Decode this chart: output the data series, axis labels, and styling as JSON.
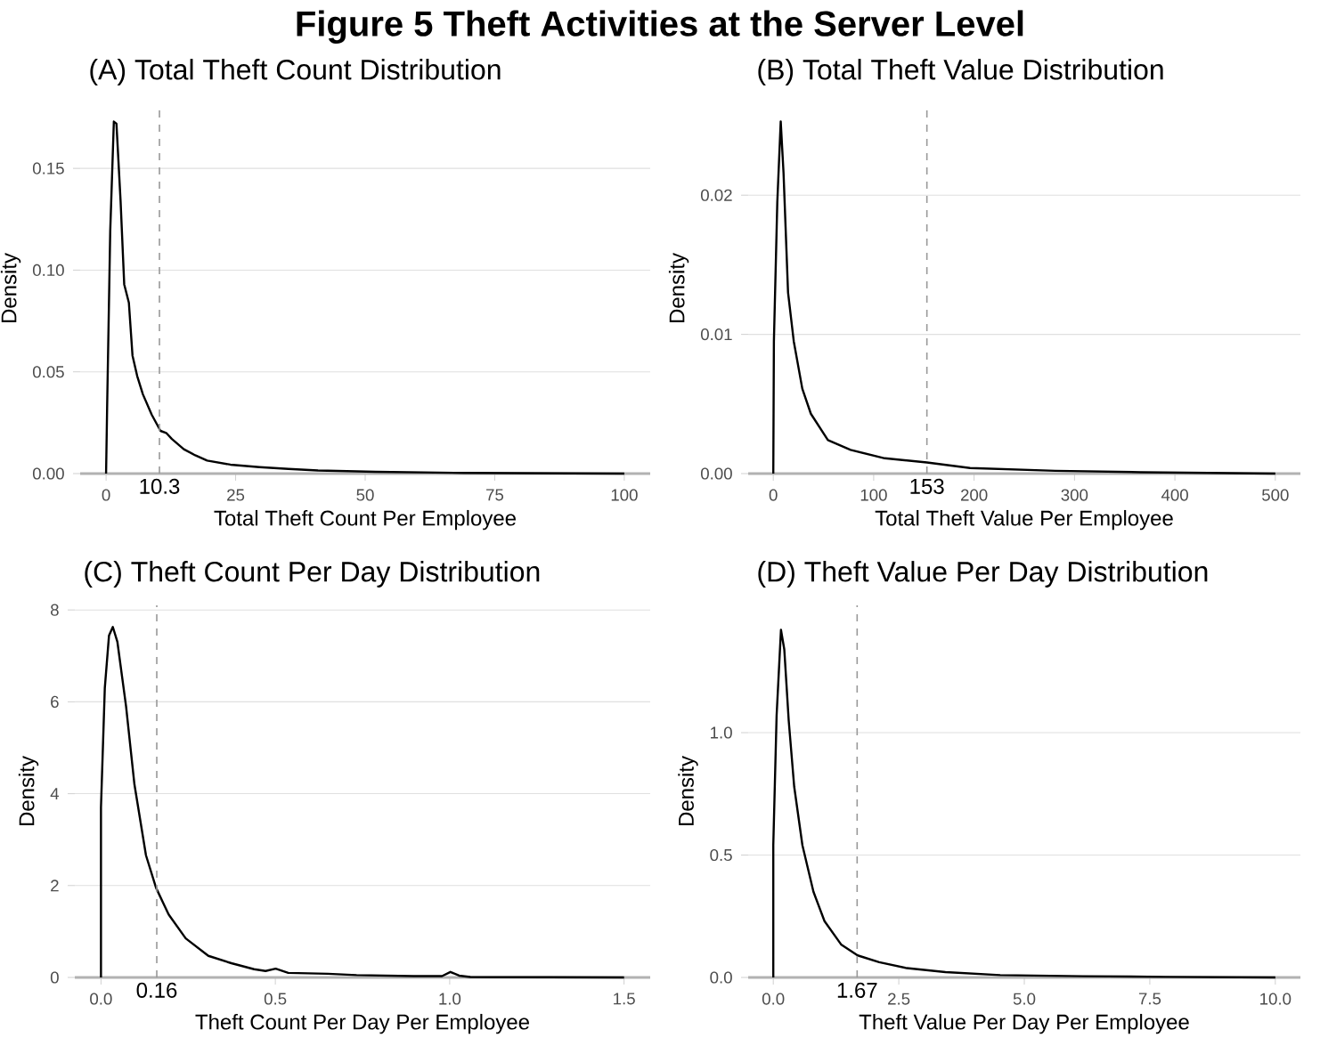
{
  "chart_data": [
    {
      "type": "line",
      "title": "Figure 5 Theft Activities at the Server Level",
      "subtitle": "(A) Total Theft Count Distribution",
      "xlabel": "Total Theft Count Per Employee",
      "ylabel": "Density",
      "color": "#000000",
      "line_style": "solid",
      "grid": "y",
      "x": [
        0,
        0.2,
        0.8,
        1.5,
        2.0,
        2.8,
        3.5,
        4.4,
        5.1,
        6.0,
        7.1,
        8.8,
        10.5,
        11.6,
        12.7,
        15,
        17.2,
        19.5,
        24,
        29.6,
        35.2,
        40.9,
        52,
        69,
        100
      ],
      "values": [
        0,
        0.032,
        0.119,
        0.173,
        0.172,
        0.134,
        0.093,
        0.084,
        0.058,
        0.048,
        0.039,
        0.029,
        0.021,
        0.02,
        0.017,
        0.012,
        0.009,
        0.0064,
        0.0044,
        0.0032,
        0.0023,
        0.0015,
        0.0009,
        0.0003,
        0
      ],
      "xlim": [
        -5,
        105
      ],
      "ylim": [
        0,
        0.182
      ],
      "xticks": [
        0,
        25,
        50,
        75,
        100
      ],
      "yticks": [
        {
          "value": 0,
          "label": "0.00"
        },
        {
          "value": 0.05,
          "label": "0.05"
        },
        {
          "value": 0.1,
          "label": "0.10"
        },
        {
          "value": 0.15,
          "label": "0.15"
        }
      ],
      "ref_lines": [
        {
          "axis": "x",
          "value": 10.3,
          "label": "10.3",
          "color": "#999999",
          "line_style": "dashed"
        }
      ]
    },
    {
      "type": "line",
      "subtitle": "(B) Total Theft Value Distribution",
      "xlabel": "Total Theft Value Per Employee",
      "ylabel": "Density",
      "color": "#000000",
      "line_style": "solid",
      "grid": "y",
      "x": [
        0,
        0.6,
        4,
        7.4,
        10.2,
        14.7,
        20.4,
        28.9,
        37.4,
        54.4,
        77,
        111,
        153,
        196,
        281,
        366,
        500
      ],
      "values": [
        0,
        0.0095,
        0.0195,
        0.0253,
        0.0216,
        0.013,
        0.0095,
        0.0061,
        0.0043,
        0.0024,
        0.0017,
        0.0011,
        0.0008,
        0.0004,
        0.0002,
        0.0001,
        0
      ],
      "xlim": [
        -25,
        525
      ],
      "ylim": [
        0,
        0.0266
      ],
      "xticks": [
        0,
        100,
        200,
        300,
        400,
        500
      ],
      "yticks": [
        {
          "value": 0,
          "label": "0.00"
        },
        {
          "value": 0.01,
          "label": "0.01"
        },
        {
          "value": 0.02,
          "label": "0.02"
        }
      ],
      "ref_lines": [
        {
          "axis": "x",
          "value": 153,
          "label": "153",
          "color": "#999999",
          "line_style": "dashed"
        }
      ]
    },
    {
      "type": "line",
      "subtitle": "(C) Theft Count Per Day Distribution",
      "xlabel": "Theft Count Per Day Per Employee",
      "ylabel": "Density",
      "color": "#000000",
      "line_style": "solid",
      "grid": "y",
      "x": [
        0,
        0,
        0.011,
        0.023,
        0.034,
        0.047,
        0.072,
        0.096,
        0.129,
        0.158,
        0.194,
        0.243,
        0.308,
        0.374,
        0.439,
        0.472,
        0.501,
        0.537,
        0.651,
        0.733,
        0.896,
        0.978,
        1.002,
        1.027,
        1.059,
        1.5
      ],
      "values": [
        0,
        3.7,
        6.3,
        7.44,
        7.63,
        7.31,
        5.9,
        4.2,
        2.66,
        1.95,
        1.37,
        0.85,
        0.47,
        0.31,
        0.18,
        0.14,
        0.19,
        0.1,
        0.08,
        0.05,
        0.03,
        0.03,
        0.12,
        0.04,
        0.01,
        0
      ],
      "xlim": [
        -0.075,
        1.575
      ],
      "ylim": [
        0,
        8.1
      ],
      "xticks": [
        {
          "value": 0,
          "label": "0.0"
        },
        {
          "value": 0.5,
          "label": "0.5"
        },
        {
          "value": 1,
          "label": "1.0"
        },
        {
          "value": 1.5,
          "label": "1.5"
        }
      ],
      "yticks": [
        0,
        2,
        4,
        6,
        8
      ],
      "ref_lines": [
        {
          "axis": "x",
          "value": 0.16,
          "label": "0.16",
          "color": "#999999",
          "line_style": "dashed"
        }
      ]
    },
    {
      "type": "line",
      "subtitle": "(D) Theft Value Per Day Distribution",
      "xlabel": "Theft Value Per Day Per Employee",
      "ylabel": "Density",
      "color": "#000000",
      "line_style": "solid",
      "grid": "y",
      "x": [
        0,
        0,
        0.066,
        0.153,
        0.219,
        0.307,
        0.416,
        0.58,
        0.8,
        1.02,
        1.35,
        1.68,
        2.11,
        2.66,
        3.43,
        4.52,
        6.17,
        7.81,
        10
      ],
      "values": [
        0,
        0.54,
        1.07,
        1.42,
        1.34,
        1.05,
        0.78,
        0.54,
        0.35,
        0.23,
        0.135,
        0.09,
        0.0625,
        0.038,
        0.022,
        0.0096,
        0.005,
        0.0024,
        0
      ],
      "xlim": [
        -0.5,
        10.5
      ],
      "ylim": [
        0,
        1.52
      ],
      "xticks": [
        {
          "value": 0,
          "label": "0.0"
        },
        {
          "value": 2.5,
          "label": "2.5"
        },
        {
          "value": 5,
          "label": "5.0"
        },
        {
          "value": 7.5,
          "label": "7.5"
        },
        {
          "value": 10,
          "label": "10.0"
        }
      ],
      "yticks": [
        {
          "value": 0,
          "label": "0.0"
        },
        {
          "value": 0.5,
          "label": "0.5"
        },
        {
          "value": 1,
          "label": "1.0"
        }
      ],
      "ref_lines": [
        {
          "axis": "x",
          "value": 1.67,
          "label": "1.67",
          "color": "#999999",
          "line_style": "dashed"
        }
      ]
    }
  ]
}
